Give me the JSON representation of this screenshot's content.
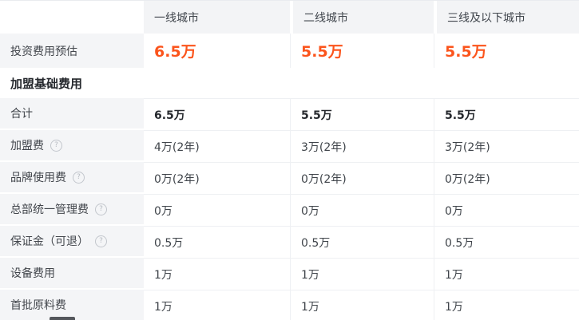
{
  "table": {
    "columns": [
      "",
      "一线城市",
      "二线城市",
      "三线及以下城市"
    ],
    "estimate": {
      "label": "投资费用预估",
      "values": [
        "6.5万",
        "5.5万",
        "5.5万"
      ]
    },
    "section_title": "加盟基础费用",
    "rows": [
      {
        "label": "合计",
        "help": false,
        "bold": true,
        "values": [
          "6.5万",
          "5.5万",
          "5.5万"
        ]
      },
      {
        "label": "加盟费",
        "help": true,
        "bold": false,
        "values": [
          "4万(2年)",
          "3万(2年)",
          "3万(2年)"
        ]
      },
      {
        "label": "品牌使用费",
        "help": true,
        "bold": false,
        "values": [
          "0万(2年)",
          "0万(2年)",
          "0万(2年)"
        ]
      },
      {
        "label": "总部统一管理费",
        "help": true,
        "bold": false,
        "values": [
          "0万",
          "0万",
          "0万"
        ]
      },
      {
        "label": "保证金（可退）",
        "help": true,
        "bold": false,
        "values": [
          "0.5万",
          "0.5万",
          "0.5万"
        ]
      },
      {
        "label": "设备费用",
        "help": false,
        "bold": false,
        "values": [
          "1万",
          "1万",
          "1万"
        ]
      },
      {
        "label": "首批原料费",
        "help": false,
        "bold": false,
        "values": [
          "1万",
          "1万",
          "1万"
        ]
      }
    ],
    "help_icon_glyph": "?",
    "colors": {
      "accent_orange": "#fb541c",
      "label_cell_gray": "#f4f5f7",
      "divider": "#eef0f3"
    }
  }
}
